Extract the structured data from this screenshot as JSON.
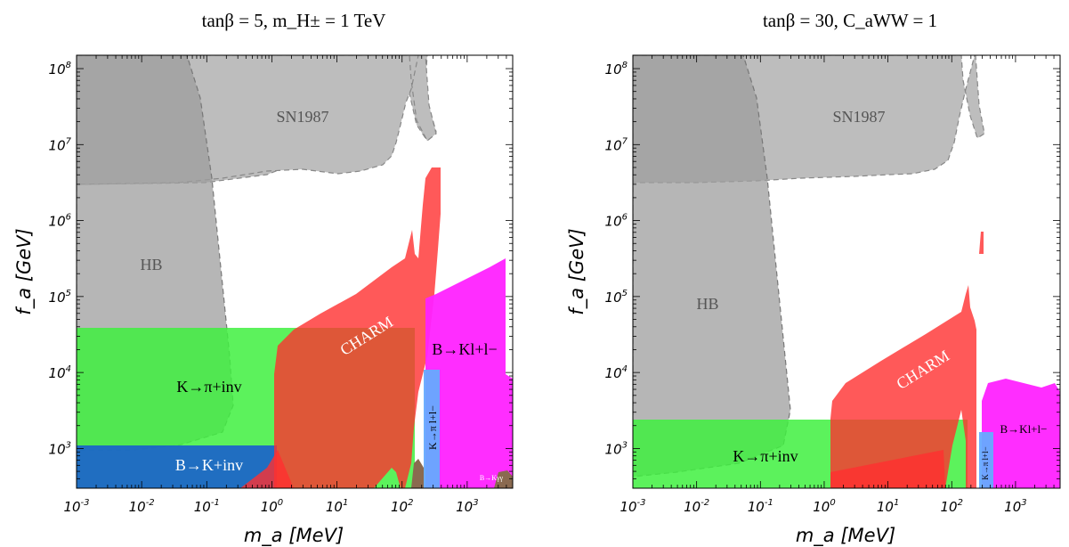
{
  "chart_data": [
    {
      "type": "area",
      "title": "tanβ = 5,  m_H± = 1 TeV",
      "xlabel": "m_a [MeV]",
      "ylabel": "f_a [GeV]",
      "xscale": "log",
      "yscale": "log",
      "xlim": [
        0.001,
        5000
      ],
      "ylim": [
        300,
        150000000
      ],
      "x_ticks": [
        "10-3",
        "10-2",
        "10-1",
        "100",
        "101",
        "102",
        "103"
      ],
      "y_ticks": [
        "103",
        "104",
        "105",
        "106",
        "107",
        "108"
      ],
      "regions": [
        {
          "name": "SN1987",
          "color": "#bdbdbd",
          "style": "dashed",
          "points": [
            [
              0.001,
              3000000
            ],
            [
              0.001,
              150000000
            ],
            [
              150,
              150000000
            ],
            [
              130,
              80000000
            ],
            [
              150,
              20000000
            ],
            [
              200,
              12000000
            ],
            [
              220,
              14000000
            ],
            [
              210,
              50000000
            ],
            [
              220,
              150000000
            ],
            [
              3,
              150000000
            ],
            [
              2,
              10000000
            ],
            [
              0.3,
              5000000
            ],
            [
              0.001,
              3000000
            ]
          ]
        },
        {
          "name": "HB",
          "color": "#a8a8a8",
          "style": "dashed",
          "points": [
            [
              0.001,
              150000000
            ],
            [
              0.01,
              150000000
            ],
            [
              0.03,
              50000000
            ],
            [
              0.1,
              3000000
            ],
            [
              0.2,
              500000
            ],
            [
              0.25,
              100000
            ],
            [
              0.2,
              10000
            ],
            [
              0.1,
              3000
            ],
            [
              0.03,
              1500
            ],
            [
              0.01,
              1100
            ],
            [
              0.001,
              1000
            ]
          ]
        },
        {
          "name": "K→π+inv",
          "color": "#55f555",
          "points": [
            [
              0.001,
              300
            ],
            [
              0.001,
              40000
            ],
            [
              80,
              40000
            ],
            [
              80,
              300
            ]
          ]
        },
        {
          "name": "B→K+inv",
          "color": "#2060cc",
          "points": [
            [
              0.001,
              300
            ],
            [
              0.001,
              1000
            ],
            [
              1,
              1000
            ],
            [
              1,
              300
            ]
          ]
        },
        {
          "name": "CHARM",
          "color": "#ff4040",
          "points": [
            [
              1,
              300
            ],
            [
              1,
              7000
            ],
            [
              1.5,
              20000
            ],
            [
              10,
              50000
            ],
            [
              120,
              150000
            ],
            [
              150,
              800000
            ],
            [
              170,
              180000
            ],
            [
              190,
              400000
            ],
            [
              210,
              4800000
            ],
            [
              260,
              4800000
            ],
            [
              270,
              1000000
            ],
            [
              280,
              300
            ],
            [
              200,
              300
            ],
            [
              150,
              400
            ],
            [
              120,
              300
            ]
          ]
        },
        {
          "name": "B→Kl+l−",
          "color": "#ff22ff",
          "style": "dots",
          "points": [
            [
              250,
              300
            ],
            [
              250,
              40000
            ],
            [
              300,
              100000
            ],
            [
              600,
              250000
            ],
            [
              3000,
              300000
            ],
            [
              3500,
              10000
            ],
            [
              5000,
              5000
            ],
            [
              5000,
              300
            ]
          ]
        },
        {
          "name": "K→π l+l−",
          "color": "#6aa8ff",
          "points": [
            [
              150,
              300
            ],
            [
              150,
              10000
            ],
            [
              280,
              10000
            ],
            [
              280,
              300
            ]
          ]
        },
        {
          "name": "B→Kγγ",
          "color": "#9a6a55",
          "points": [
            [
              3000,
              300
            ],
            [
              3000,
              400
            ],
            [
              4500,
              400
            ],
            [
              4500,
              300
            ]
          ]
        }
      ],
      "labels": {
        "SN1987": "SN1987",
        "HB": "HB",
        "K_pi_inv": "K→π+inv",
        "B_K_inv": "B→K+inv",
        "CHARM": "CHARM",
        "B_K_ll": "B→Kl+l−",
        "K_pi_ll": "K→π l+l−",
        "B_K_gg": "B→Kγγ"
      },
      "colors": {
        "sn": "#bdbdbd",
        "hb": "#a8a8a8",
        "green": "#55f555",
        "blue": "#2060cc",
        "red": "#ff4040",
        "magenta": "#ff22ff",
        "cyan": "#6aa8ff"
      }
    },
    {
      "type": "area",
      "title": "tanβ = 30,  C_aWW = 1",
      "xlabel": "m_a [MeV]",
      "ylabel": "f_a [GeV]",
      "xscale": "log",
      "yscale": "log",
      "xlim": [
        0.001,
        5000
      ],
      "ylim": [
        300,
        150000000
      ],
      "x_ticks": [
        "10-3",
        "10-2",
        "10-1",
        "100",
        "101",
        "102",
        "103"
      ],
      "y_ticks": [
        "103",
        "104",
        "105",
        "106",
        "107",
        "108"
      ],
      "regions": [
        {
          "name": "SN1987",
          "color": "#bdbdbd",
          "style": "dashed",
          "points": [
            [
              0.001,
              3000000
            ],
            [
              0.001,
              150000000
            ],
            [
              150,
              150000000
            ],
            [
              130,
              80000000
            ],
            [
              150,
              20000000
            ],
            [
              200,
              12000000
            ],
            [
              220,
              14000000
            ],
            [
              210,
              50000000
            ],
            [
              220,
              150000000
            ],
            [
              3,
              150000000
            ],
            [
              2,
              10000000
            ],
            [
              0.3,
              5000000
            ],
            [
              0.001,
              3000000
            ]
          ]
        },
        {
          "name": "HB",
          "color": "#a8a8a8",
          "style": "dashed",
          "points": [
            [
              0.001,
              150000000
            ],
            [
              0.01,
              150000000
            ],
            [
              0.03,
              50000000
            ],
            [
              0.1,
              3000000
            ],
            [
              0.2,
              500000
            ],
            [
              0.25,
              100000
            ],
            [
              0.2,
              10000
            ],
            [
              0.1,
              3000
            ],
            [
              0.03,
              1500
            ],
            [
              0.01,
              1100
            ],
            [
              0.001,
              1000
            ]
          ]
        },
        {
          "name": "K→π+inv",
          "color": "#55f555",
          "points": [
            [
              0.001,
              300
            ],
            [
              0.001,
              2500
            ],
            [
              180,
              2500
            ],
            [
              180,
              300
            ]
          ]
        },
        {
          "name": "CHARM",
          "color": "#ff4040",
          "points": [
            [
              1,
              300
            ],
            [
              1,
              3000
            ],
            [
              1.5,
              7000
            ],
            [
              10,
              15000
            ],
            [
              120,
              40000
            ],
            [
              150,
              100000
            ],
            [
              170,
              60000
            ],
            [
              180,
              100000
            ],
            [
              200,
              200000
            ],
            [
              205,
              2000000
            ],
            [
              220,
              2000000
            ],
            [
              220,
              300
            ]
          ]
        },
        {
          "name": "B→Kl+l−",
          "color": "#ff22ff",
          "style": "dots",
          "points": [
            [
              250,
              300
            ],
            [
              250,
              4000
            ],
            [
              400,
              8000
            ],
            [
              1000,
              10000
            ],
            [
              3000,
              12000
            ],
            [
              3500,
              4000
            ],
            [
              5000,
              3000
            ],
            [
              5000,
              300
            ]
          ]
        },
        {
          "name": "K→π l+l−",
          "color": "#6aa8ff",
          "points": [
            [
              150,
              300
            ],
            [
              150,
              1500
            ],
            [
              260,
              1500
            ],
            [
              260,
              300
            ]
          ]
        }
      ],
      "labels": {
        "SN1987": "SN1987",
        "HB": "HB",
        "K_pi_inv": "K→π+inv",
        "CHARM": "CHARM",
        "B_K_ll": "B→Kl+l−",
        "K_pi_ll": "K→π l+l−"
      },
      "colors": {
        "sn": "#bdbdbd",
        "hb": "#a8a8a8",
        "green": "#55f555",
        "red": "#ff4040",
        "magenta": "#ff22ff",
        "cyan": "#6aa8ff"
      }
    }
  ]
}
